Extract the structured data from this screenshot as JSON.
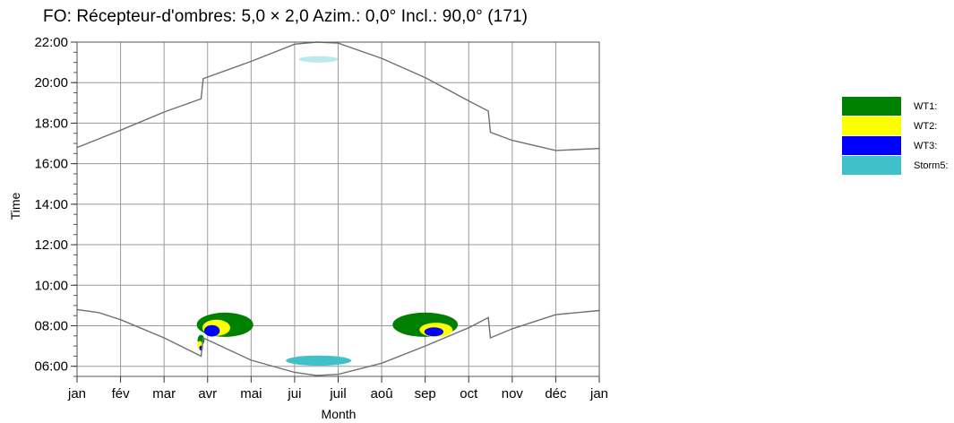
{
  "chart_data": {
    "type": "area",
    "title": "FO: Récepteur-d'ombres: 5,0 × 2,0  Azim.: 0,0°  Incl.: 90,0° (171)",
    "xlabel": "Month",
    "ylabel": "Time",
    "x_categories": [
      "jan",
      "fév",
      "mar",
      "avr",
      "mai",
      "jui",
      "juil",
      "aoû",
      "sep",
      "oct",
      "nov",
      "déc",
      "jan"
    ],
    "y_ticks": [
      "22:00",
      "20:00",
      "18:00",
      "16:00",
      "14:00",
      "12:00",
      "10:00",
      "08:00",
      "06:00"
    ],
    "ylim": [
      "05:30",
      "22:00"
    ],
    "grid": true,
    "legend_position": "right",
    "series": [
      {
        "name": "WT1:",
        "color": "#008000"
      },
      {
        "name": "WT2:",
        "color": "#ffff00"
      },
      {
        "name": "WT3:",
        "color": "#0000ff"
      },
      {
        "name": "Storm5:",
        "color": "#40c0c8"
      }
    ],
    "sunset_curve": {
      "months": [
        0,
        1,
        2,
        2.85,
        2.9,
        4,
        5,
        5.5,
        6,
        7,
        8,
        9,
        9.45,
        9.5,
        10,
        11,
        12
      ],
      "hours": [
        16.8,
        17.65,
        18.55,
        19.2,
        20.2,
        21.05,
        21.9,
        22.0,
        21.95,
        21.2,
        20.25,
        19.1,
        18.6,
        17.55,
        17.15,
        16.65,
        16.75
      ]
    },
    "sunrise_curve": {
      "months": [
        0,
        0.5,
        1,
        2,
        2.85,
        2.9,
        4,
        5,
        5.5,
        6,
        7,
        8,
        9,
        9.45,
        9.5,
        10,
        11,
        12
      ],
      "hours": [
        8.8,
        8.65,
        8.3,
        7.4,
        6.5,
        7.4,
        6.3,
        5.7,
        5.55,
        5.6,
        6.15,
        7.0,
        7.9,
        8.4,
        7.4,
        7.85,
        8.55,
        8.75
      ]
    },
    "shadow_regions": [
      {
        "series": "WT1:",
        "month": 3.4,
        "time": 8.05,
        "month_radius": 0.65,
        "time_radius": 0.6
      },
      {
        "series": "WT1:",
        "month": 8.0,
        "time": 8.05,
        "month_radius": 0.75,
        "time_radius": 0.6
      },
      {
        "series": "WT1:",
        "month": 2.85,
        "time": 7.3,
        "month_radius": 0.08,
        "time_radius": 0.25
      },
      {
        "series": "WT2:",
        "month": 3.2,
        "time": 7.9,
        "month_radius": 0.32,
        "time_radius": 0.4
      },
      {
        "series": "WT2:",
        "month": 8.25,
        "time": 7.8,
        "month_radius": 0.38,
        "time_radius": 0.35
      },
      {
        "series": "WT2:",
        "month": 2.82,
        "time": 7.05,
        "month_radius": 0.06,
        "time_radius": 0.2
      },
      {
        "series": "WT3:",
        "month": 3.1,
        "time": 7.75,
        "month_radius": 0.18,
        "time_radius": 0.28
      },
      {
        "series": "WT3:",
        "month": 8.2,
        "time": 7.7,
        "month_radius": 0.22,
        "time_radius": 0.22
      },
      {
        "series": "WT3:",
        "month": 2.85,
        "time": 6.9,
        "month_radius": 0.04,
        "time_radius": 0.12
      },
      {
        "series": "Storm5:",
        "month": 5.55,
        "time": 6.28,
        "month_radius": 0.75,
        "time_radius": 0.25
      },
      {
        "series": "Storm5:",
        "month": 5.55,
        "time": 21.15,
        "month_radius": 0.45,
        "time_radius": 0.16,
        "faded": true
      }
    ]
  }
}
